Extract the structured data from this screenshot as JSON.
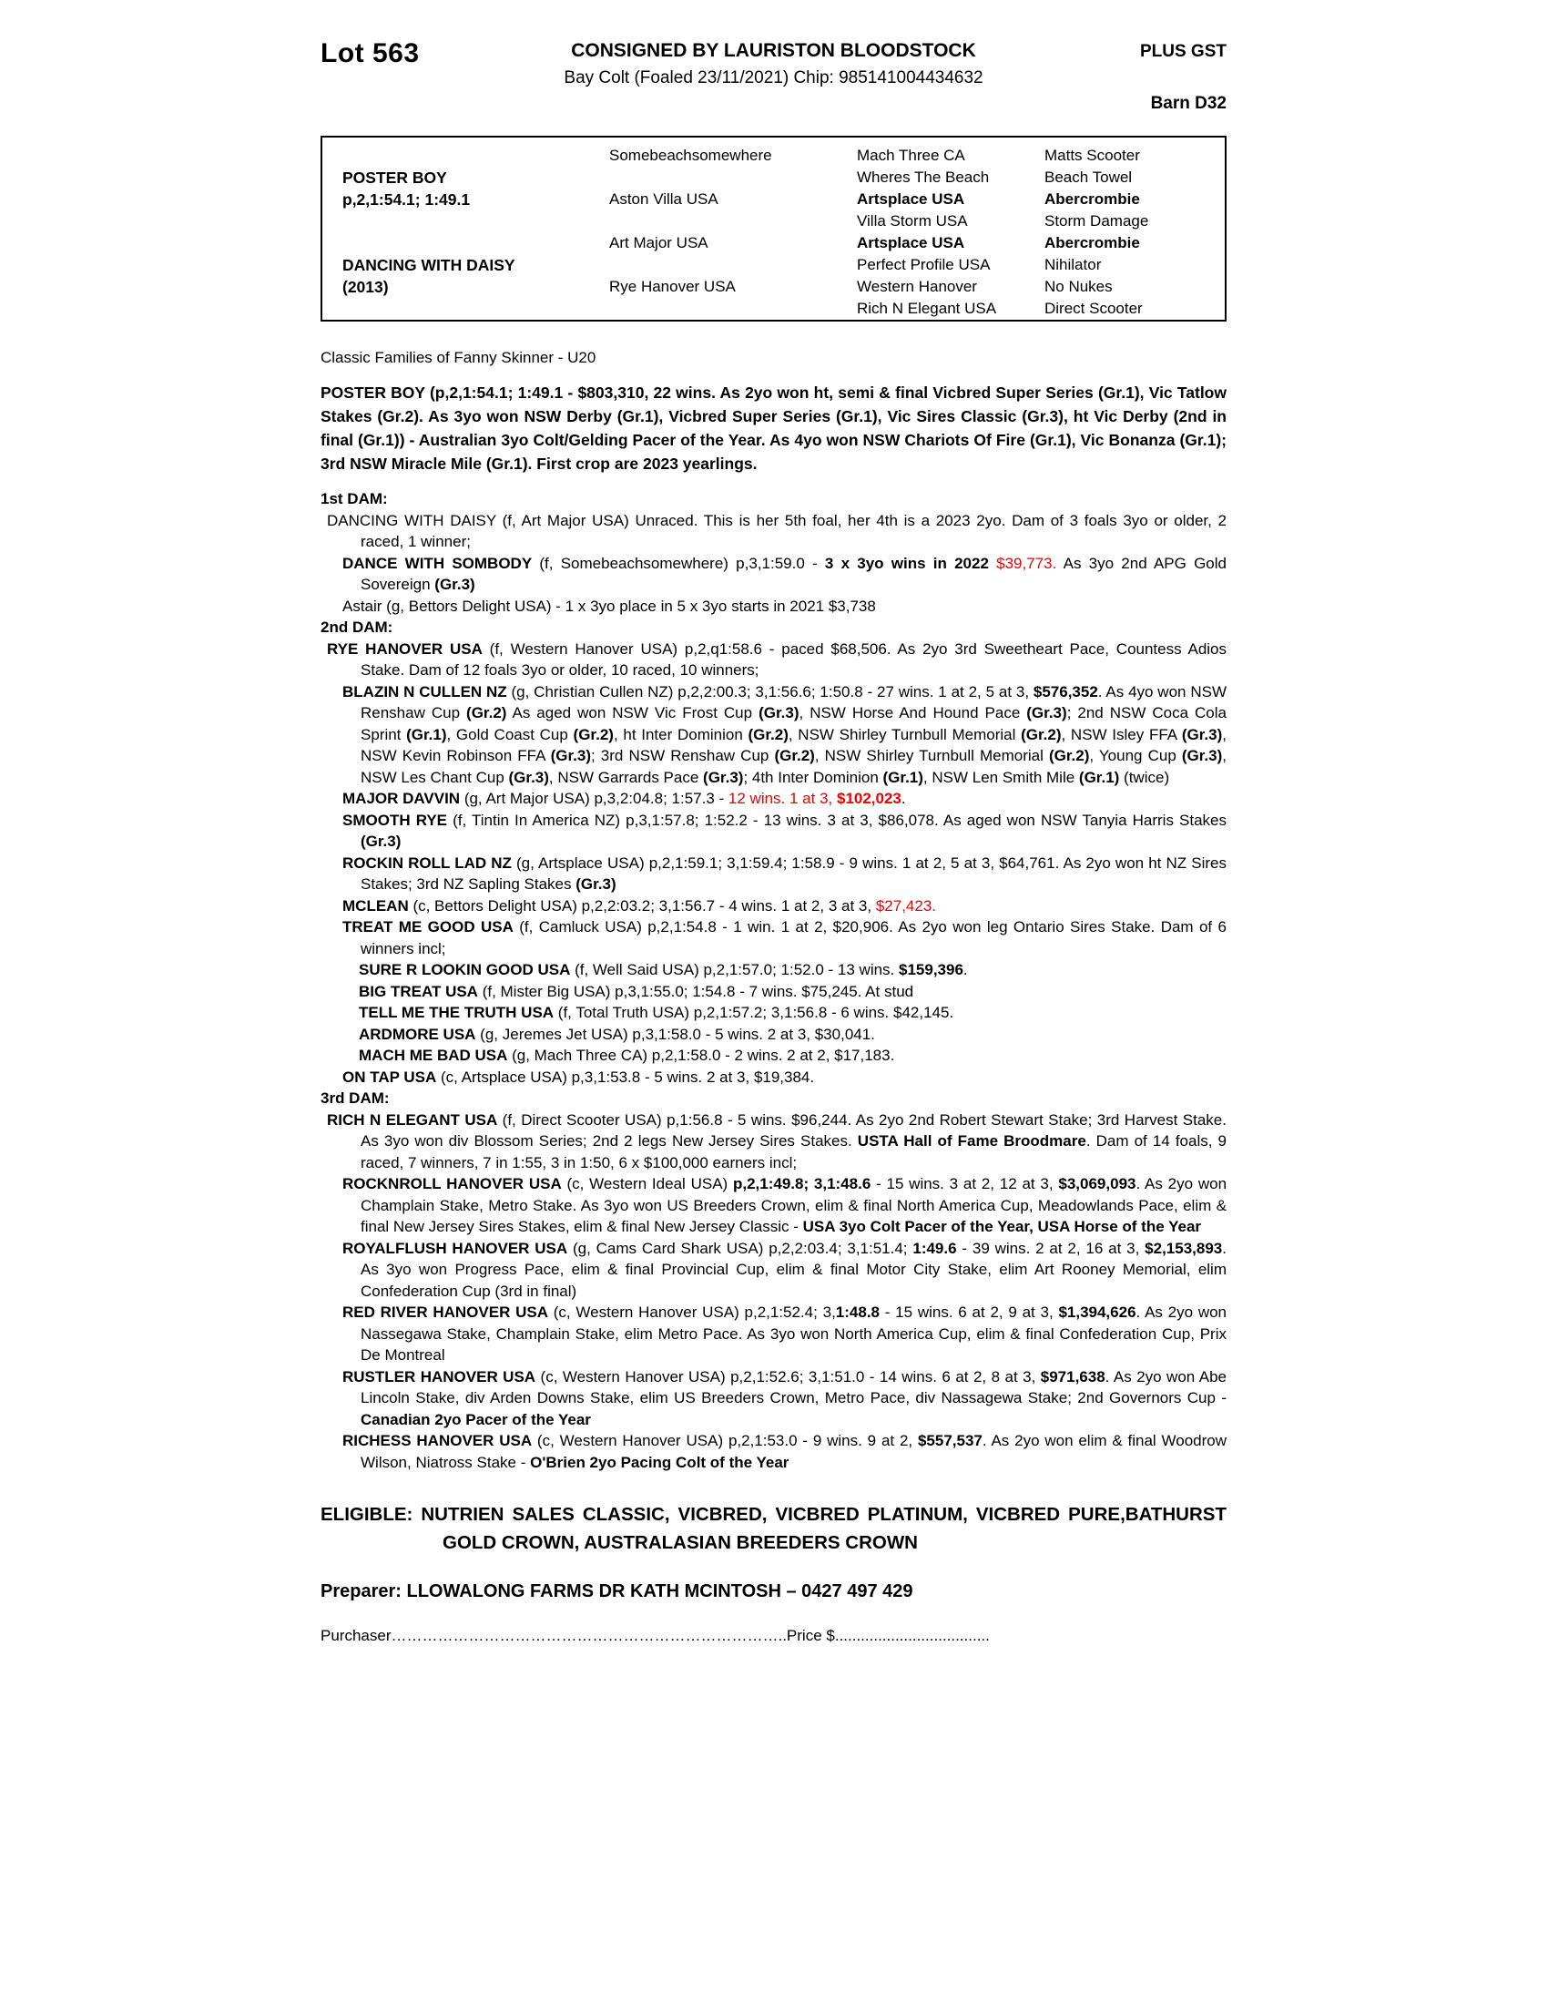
{
  "header": {
    "lot": "Lot 563",
    "consignor": "CONSIGNED BY LAURISTON BLOODSTOCK",
    "plus_gst": "PLUS GST",
    "subtitle": "Bay Colt (Foaled 23/11/2021) Chip: 985141004434632",
    "barn": "Barn D32"
  },
  "pedigree_table": {
    "sire_name": "POSTER BOY",
    "sire_record": "p,2,1:54.1; 1:49.1",
    "dam_name": "DANCING WITH DAISY",
    "dam_year": "(2013)",
    "rows": [
      {
        "g2": "Somebeachsomewhere",
        "g3": "Mach Three CA",
        "g4": "Matts Scooter",
        "bold": false
      },
      {
        "g2": "",
        "g3": "Wheres The Beach",
        "g4": "Beach Towel",
        "bold": false
      },
      {
        "g2": "Aston Villa USA",
        "g3": "Artsplace USA",
        "g4": "Abercrombie",
        "bold": true
      },
      {
        "g2": "",
        "g3": "Villa Storm USA",
        "g4": "Storm Damage",
        "bold": false
      },
      {
        "g2": "Art Major USA",
        "g3": "Artsplace USA",
        "g4": "Abercrombie",
        "bold": true
      },
      {
        "g2": "",
        "g3": "Perfect Profile USA",
        "g4": "Nihilator",
        "bold": false
      },
      {
        "g2": "Rye Hanover USA",
        "g3": "Western Hanover",
        "g4": "No Nukes",
        "bold": false
      },
      {
        "g2": "",
        "g3": "Rich N Elegant USA",
        "g4": "Direct Scooter",
        "bold": false
      }
    ]
  },
  "family_note": "Classic Families of Fanny Skinner - U20",
  "sire_paragraph": "POSTER BOY (p,2,1:54.1; 1:49.1 - $803,310, 22 wins. As 2yo won ht, semi & final Vicbred Super Series (Gr.1), Vic Tatlow Stakes (Gr.2). As 3yo won NSW Derby (Gr.1), Vicbred Super Series (Gr.1), Vic Sires Classic (Gr.3), ht Vic Derby (2nd in final (Gr.1)) - Australian 3yo Colt/Gelding Pacer of the Year. As 4yo won NSW Chariots Of Fire (Gr.1), Vic Bonanza (Gr.1); 3rd NSW Miracle Mile (Gr.1). First crop are 2023 yearlings.",
  "dam_sections": [
    {
      "heading": "1st DAM:",
      "entries": [
        {
          "indent": 1,
          "segments": [
            [
              "DANCING WITH DAISY (f, Art Major USA) Unraced. This is her 5th foal, her 4th is a 2023 2yo. Dam of 3 foals 3yo or older, 2 raced, 1 winner;",
              ""
            ]
          ]
        },
        {
          "indent": 2,
          "segments": [
            [
              "DANCE WITH SOMBODY",
              "b"
            ],
            [
              " (f, Somebeachsomewhere) p,3,1:59.0 - ",
              ""
            ],
            [
              "3 x 3yo wins in 2022 ",
              "b"
            ],
            [
              "$39,773.",
              "r"
            ],
            [
              " As 3yo 2nd APG Gold Sovereign ",
              ""
            ],
            [
              "(Gr.3)",
              "b"
            ]
          ]
        },
        {
          "indent": 2,
          "segments": [
            [
              "Astair (g, Bettors Delight USA) - 1 x 3yo place in 5 x 3yo starts in 2021 $3,738",
              ""
            ]
          ]
        }
      ]
    },
    {
      "heading": "2nd DAM:",
      "entries": [
        {
          "indent": 1,
          "segments": [
            [
              "RYE HANOVER USA",
              "b"
            ],
            [
              " (f, Western Hanover USA) p,2,q1:58.6 - paced $68,506. As 2yo 3rd Sweetheart Pace, Countess Adios Stake. Dam of 12 foals 3yo or older, 10 raced, 10 winners;",
              ""
            ]
          ]
        },
        {
          "indent": 2,
          "segments": [
            [
              "BLAZIN N CULLEN NZ",
              "b"
            ],
            [
              " (g, Christian Cullen NZ) p,2,2:00.3; 3,1:56.6; 1:50.8 - 27 wins. 1 at 2, 5 at 3, ",
              ""
            ],
            [
              "$576,352",
              "b"
            ],
            [
              ". As 4yo won NSW Renshaw Cup ",
              ""
            ],
            [
              "(Gr.2)",
              "b"
            ],
            [
              " As aged won NSW Vic Frost Cup ",
              ""
            ],
            [
              "(Gr.3)",
              "b"
            ],
            [
              ", NSW Horse And Hound Pace ",
              ""
            ],
            [
              "(Gr.3)",
              "b"
            ],
            [
              "; 2nd NSW Coca Cola Sprint ",
              ""
            ],
            [
              "(Gr.1)",
              "b"
            ],
            [
              ", Gold Coast Cup ",
              ""
            ],
            [
              "(Gr.2)",
              "b"
            ],
            [
              ", ht Inter Dominion ",
              ""
            ],
            [
              "(Gr.2)",
              "b"
            ],
            [
              ", NSW Shirley Turnbull Memorial ",
              ""
            ],
            [
              "(Gr.2)",
              "b"
            ],
            [
              ", NSW Isley FFA ",
              ""
            ],
            [
              "(Gr.3)",
              "b"
            ],
            [
              ", NSW Kevin Robinson FFA ",
              ""
            ],
            [
              "(Gr.3)",
              "b"
            ],
            [
              "; 3rd NSW Renshaw Cup ",
              ""
            ],
            [
              "(Gr.2)",
              "b"
            ],
            [
              ", NSW Shirley Turnbull Memorial ",
              ""
            ],
            [
              "(Gr.2)",
              "b"
            ],
            [
              ", Young Cup ",
              ""
            ],
            [
              "(Gr.3)",
              "b"
            ],
            [
              ", NSW Les Chant Cup ",
              ""
            ],
            [
              "(Gr.3)",
              "b"
            ],
            [
              ", NSW Garrards Pace ",
              ""
            ],
            [
              "(Gr.3)",
              "b"
            ],
            [
              "; 4th Inter Dominion ",
              ""
            ],
            [
              "(Gr.1)",
              "b"
            ],
            [
              ", NSW Len Smith Mile ",
              ""
            ],
            [
              "(Gr.1)",
              "b"
            ],
            [
              " (twice)",
              ""
            ]
          ]
        },
        {
          "indent": 2,
          "segments": [
            [
              "MAJOR DAVVIN",
              "b"
            ],
            [
              " (g, Art Major USA) p,3,2:04.8; 1:57.3 - ",
              ""
            ],
            [
              "12 wins. 1 at 3, ",
              "r"
            ],
            [
              "$102,023",
              "br"
            ],
            [
              ".",
              ""
            ]
          ]
        },
        {
          "indent": 2,
          "segments": [
            [
              "SMOOTH RYE",
              "b"
            ],
            [
              " (f, Tintin In America NZ) p,3,1:57.8; 1:52.2 - 13 wins. 3 at 3, $86,078. As aged won NSW Tanyia Harris Stakes ",
              ""
            ],
            [
              "(Gr.3)",
              "b"
            ]
          ]
        },
        {
          "indent": 2,
          "segments": [
            [
              "ROCKIN ROLL LAD NZ",
              "b"
            ],
            [
              " (g, Artsplace USA) p,2,1:59.1; 3,1:59.4; 1:58.9 - 9 wins. 1 at 2, 5 at 3, $64,761. As 2yo won ht NZ Sires Stakes; 3rd NZ Sapling Stakes ",
              ""
            ],
            [
              "(Gr.3)",
              "b"
            ]
          ]
        },
        {
          "indent": 2,
          "segments": [
            [
              "MCLEAN",
              "b"
            ],
            [
              " (c, Bettors Delight USA) p,2,2:03.2; 3,1:56.7 - 4 wins. 1 at 2, 3 at 3, ",
              ""
            ],
            [
              "$27,423.",
              "r"
            ]
          ]
        },
        {
          "indent": 2,
          "segments": [
            [
              "TREAT ME GOOD USA",
              "b"
            ],
            [
              " (f, Camluck USA) p,2,1:54.8 - 1 win. 1 at 2, $20,906. As 2yo won leg Ontario Sires Stake. Dam of 6 winners incl;",
              ""
            ]
          ]
        },
        {
          "indent": 3,
          "segments": [
            [
              "SURE R LOOKIN GOOD USA",
              "b"
            ],
            [
              " (f, Well Said USA) p,2,1:57.0; 1:52.0 - 13 wins. ",
              ""
            ],
            [
              "$159,396",
              "b"
            ],
            [
              ".",
              ""
            ]
          ]
        },
        {
          "indent": 3,
          "segments": [
            [
              "BIG TREAT USA",
              "b"
            ],
            [
              " (f, Mister Big USA) p,3,1:55.0; 1:54.8 - 7 wins. $75,245. At stud",
              ""
            ]
          ]
        },
        {
          "indent": 3,
          "segments": [
            [
              "TELL ME THE TRUTH USA",
              "b"
            ],
            [
              " (f, Total Truth USA) p,2,1:57.2; 3,1:56.8 - 6 wins. $42,145.",
              ""
            ]
          ]
        },
        {
          "indent": 3,
          "segments": [
            [
              "ARDMORE USA",
              "b"
            ],
            [
              " (g, Jeremes Jet USA) p,3,1:58.0 - 5 wins. 2 at 3, $30,041.",
              ""
            ]
          ]
        },
        {
          "indent": 3,
          "segments": [
            [
              "MACH ME BAD USA",
              "b"
            ],
            [
              " (g, Mach Three CA) p,2,1:58.0 - 2 wins. 2 at 2, $17,183.",
              ""
            ]
          ]
        },
        {
          "indent": 2,
          "segments": [
            [
              "ON TAP USA",
              "b"
            ],
            [
              " (c, Artsplace USA) p,3,1:53.8 - 5 wins. 2 at 3, $19,384.",
              ""
            ]
          ]
        }
      ]
    },
    {
      "heading": "3rd DAM:",
      "entries": [
        {
          "indent": 1,
          "segments": [
            [
              "RICH N ELEGANT USA",
              "b"
            ],
            [
              " (f, Direct Scooter USA) p,1:56.8 - 5 wins. $96,244. As 2yo 2nd Robert Stewart Stake; 3rd Harvest Stake. As 3yo won div Blossom Series; 2nd 2 legs New Jersey Sires Stakes. ",
              ""
            ],
            [
              "USTA Hall of Fame Broodmare",
              "b"
            ],
            [
              ". Dam of 14 foals, 9 raced, 7 winners, 7 in 1:55, 3 in 1:50, 6 x $100,000 earners incl;",
              ""
            ]
          ]
        },
        {
          "indent": 2,
          "segments": [
            [
              "ROCKNROLL HANOVER USA",
              "b"
            ],
            [
              " (c, Western Ideal USA) ",
              ""
            ],
            [
              "p,2,1:49.8; 3,1:48.6",
              "b"
            ],
            [
              " - 15 wins. 3 at 2, 12 at 3, ",
              ""
            ],
            [
              "$3,069,093",
              "b"
            ],
            [
              ". As 2yo won Champlain Stake, Metro Stake. As 3yo won US Breeders Crown, elim & final North America Cup, Meadowlands Pace, elim & final New Jersey Sires Stakes, elim & final New Jersey Classic - ",
              ""
            ],
            [
              "USA 3yo Colt Pacer of the Year, USA Horse of the Year",
              "b"
            ]
          ]
        },
        {
          "indent": 2,
          "segments": [
            [
              "ROYALFLUSH HANOVER USA",
              "b"
            ],
            [
              " (g, Cams Card Shark USA) p,2,2:03.4; 3,1:51.4; ",
              ""
            ],
            [
              "1:49.6",
              "b"
            ],
            [
              " - 39 wins. 2 at 2, 16 at 3, ",
              ""
            ],
            [
              "$2,153,893",
              "b"
            ],
            [
              ". As 3yo won Progress Pace, elim & final Provincial Cup, elim & final Motor City Stake, elim Art Rooney Memorial, elim Confederation Cup (3rd in final)",
              ""
            ]
          ]
        },
        {
          "indent": 2,
          "segments": [
            [
              "RED RIVER HANOVER USA",
              "b"
            ],
            [
              " (c, Western Hanover USA) p,2,1:52.4; 3,",
              ""
            ],
            [
              "1:48.8",
              "b"
            ],
            [
              " - 15 wins. 6 at 2, 9 at 3, ",
              ""
            ],
            [
              "$1,394,626",
              "b"
            ],
            [
              ". As 2yo won Nassegawa Stake, Champlain Stake, elim Metro Pace. As 3yo won North America Cup, elim & final Confederation Cup, Prix De Montreal",
              ""
            ]
          ]
        },
        {
          "indent": 2,
          "segments": [
            [
              "RUSTLER HANOVER USA",
              "b"
            ],
            [
              " (c, Western Hanover USA) p,2,1:52.6; 3,1:51.0 - 14 wins. 6 at 2, 8 at 3, ",
              ""
            ],
            [
              "$971,638",
              "b"
            ],
            [
              ". As 2yo won Abe Lincoln Stake, div Arden Downs Stake, elim US Breeders Crown, Metro Pace, div Nassagewa Stake; 2nd Governors Cup - ",
              ""
            ],
            [
              "Canadian 2yo Pacer of the Year",
              "b"
            ]
          ]
        },
        {
          "indent": 2,
          "segments": [
            [
              "RICHESS HANOVER USA",
              "b"
            ],
            [
              " (c, Western Hanover USA) p,2,1:53.0 - 9 wins. 9 at 2, ",
              ""
            ],
            [
              "$557,537",
              "b"
            ],
            [
              ". As 2yo won elim & final Woodrow Wilson, Niatross Stake - ",
              ""
            ],
            [
              "O'Brien 2yo Pacing Colt of the Year",
              "b"
            ]
          ]
        }
      ]
    }
  ],
  "footer": {
    "eligible": "ELIGIBLE: NUTRIEN SALES CLASSIC, VICBRED, VICBRED PLATINUM, VICBRED PURE,BATHURST GOLD CROWN, AUSTRALASIAN BREEDERS CROWN",
    "preparer": "Preparer: LLOWALONG FARMS DR KATH MCINTOSH – 0427 497 429",
    "purchaser_line": "Purchaser…………………………………………………………………..Price $...................................."
  },
  "colors": {
    "highlight_red": "#f00000",
    "text_black": "#000000"
  }
}
